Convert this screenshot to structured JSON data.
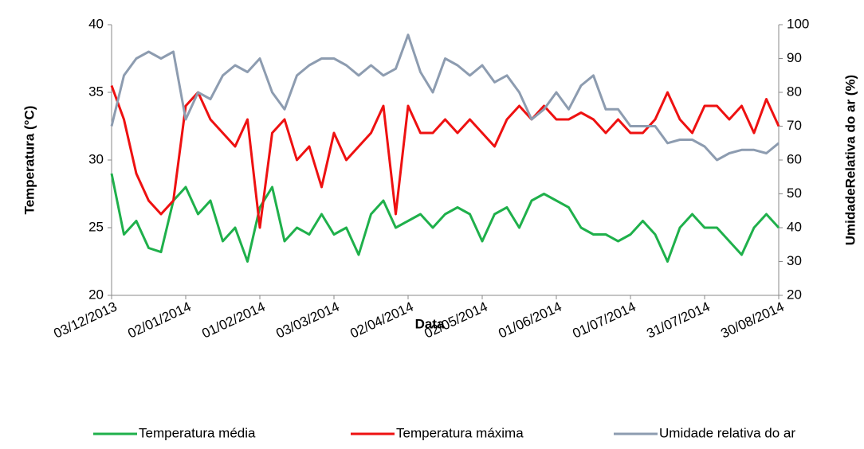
{
  "chart_data": {
    "type": "line",
    "x_label": "Data",
    "y_label": "Temperatura (°C)",
    "y2_label": "UmidadeRelativa do ar (%)",
    "x": [
      "03/12/2013",
      "08/12/2013",
      "13/12/2013",
      "18/12/2013",
      "23/12/2013",
      "28/12/2013",
      "02/01/2014",
      "07/01/2014",
      "12/01/2014",
      "17/01/2014",
      "22/01/2014",
      "27/01/2014",
      "01/02/2014",
      "06/02/2014",
      "11/02/2014",
      "16/02/2014",
      "21/02/2014",
      "26/02/2014",
      "03/03/2014",
      "08/03/2014",
      "13/03/2014",
      "18/03/2014",
      "23/03/2014",
      "28/03/2014",
      "02/04/2014",
      "07/04/2014",
      "12/04/2014",
      "17/04/2014",
      "22/04/2014",
      "27/04/2014",
      "02/05/2014",
      "07/05/2014",
      "12/05/2014",
      "17/05/2014",
      "22/05/2014",
      "27/05/2014",
      "01/06/2014",
      "06/06/2014",
      "11/06/2014",
      "16/06/2014",
      "21/06/2014",
      "26/06/2014",
      "01/07/2014",
      "06/07/2014",
      "11/07/2014",
      "16/07/2014",
      "21/07/2014",
      "26/07/2014",
      "31/07/2014",
      "05/08/2014",
      "10/08/2014",
      "15/08/2014",
      "20/08/2014",
      "25/08/2014",
      "30/08/2014"
    ],
    "xticks": [
      "03/12/2013",
      "02/01/2014",
      "01/02/2014",
      "03/03/2014",
      "02/04/2014",
      "02/05/2014",
      "01/06/2014",
      "01/07/2014",
      "31/07/2014",
      "30/08/2014"
    ],
    "ylim": [
      20,
      40
    ],
    "yticks": [
      20,
      25,
      30,
      35,
      40
    ],
    "y2lim": [
      20,
      100
    ],
    "y2ticks": [
      20,
      30,
      40,
      50,
      60,
      70,
      80,
      90,
      100
    ],
    "series": [
      {
        "name": "Temperatura média",
        "color": "#1fb04b",
        "values": [
          29,
          24.5,
          25.5,
          23.5,
          23.2,
          27,
          28,
          26,
          27,
          24,
          25,
          22.5,
          26.5,
          28,
          24,
          25,
          24.5,
          26,
          24.5,
          25,
          23,
          26,
          27,
          25,
          25.5,
          26,
          25,
          26,
          26.5,
          26,
          24,
          26,
          26.5,
          25,
          27,
          27.5,
          27,
          26.5,
          25,
          24.5,
          24.5,
          24,
          24.5,
          25.5,
          24.5,
          22.5,
          25,
          26,
          25,
          25,
          24,
          23,
          25,
          26,
          25
        ]
      },
      {
        "name": "Temperatura máxima",
        "color": "#ee1111",
        "values": [
          35.5,
          33,
          29,
          27,
          26,
          27,
          34,
          35,
          33,
          32,
          31,
          33,
          25,
          32,
          33,
          30,
          31,
          28,
          32,
          30,
          31,
          32,
          34,
          26,
          34,
          32,
          32,
          33,
          32,
          33,
          32,
          31,
          33,
          34,
          33,
          34,
          33,
          33,
          33.5,
          33,
          32,
          33,
          32,
          32,
          33,
          35,
          33,
          32,
          34,
          34,
          33,
          34,
          32,
          34.5,
          32.5
        ]
      },
      {
        "name": "Umidade relativa do ar",
        "color": "#8d9cb0",
        "axis": "y2",
        "values": [
          70,
          85,
          90,
          92,
          90,
          92,
          72,
          80,
          78,
          85,
          88,
          86,
          90,
          80,
          75,
          85,
          88,
          90,
          90,
          88,
          85,
          88,
          85,
          87,
          97,
          86,
          80,
          90,
          88,
          85,
          88,
          83,
          85,
          80,
          72,
          75,
          80,
          75,
          82,
          85,
          75,
          75,
          70,
          70,
          70,
          65,
          66,
          66,
          64,
          60,
          62,
          63,
          63,
          62,
          65
        ]
      }
    ],
    "legend": "bottom"
  }
}
